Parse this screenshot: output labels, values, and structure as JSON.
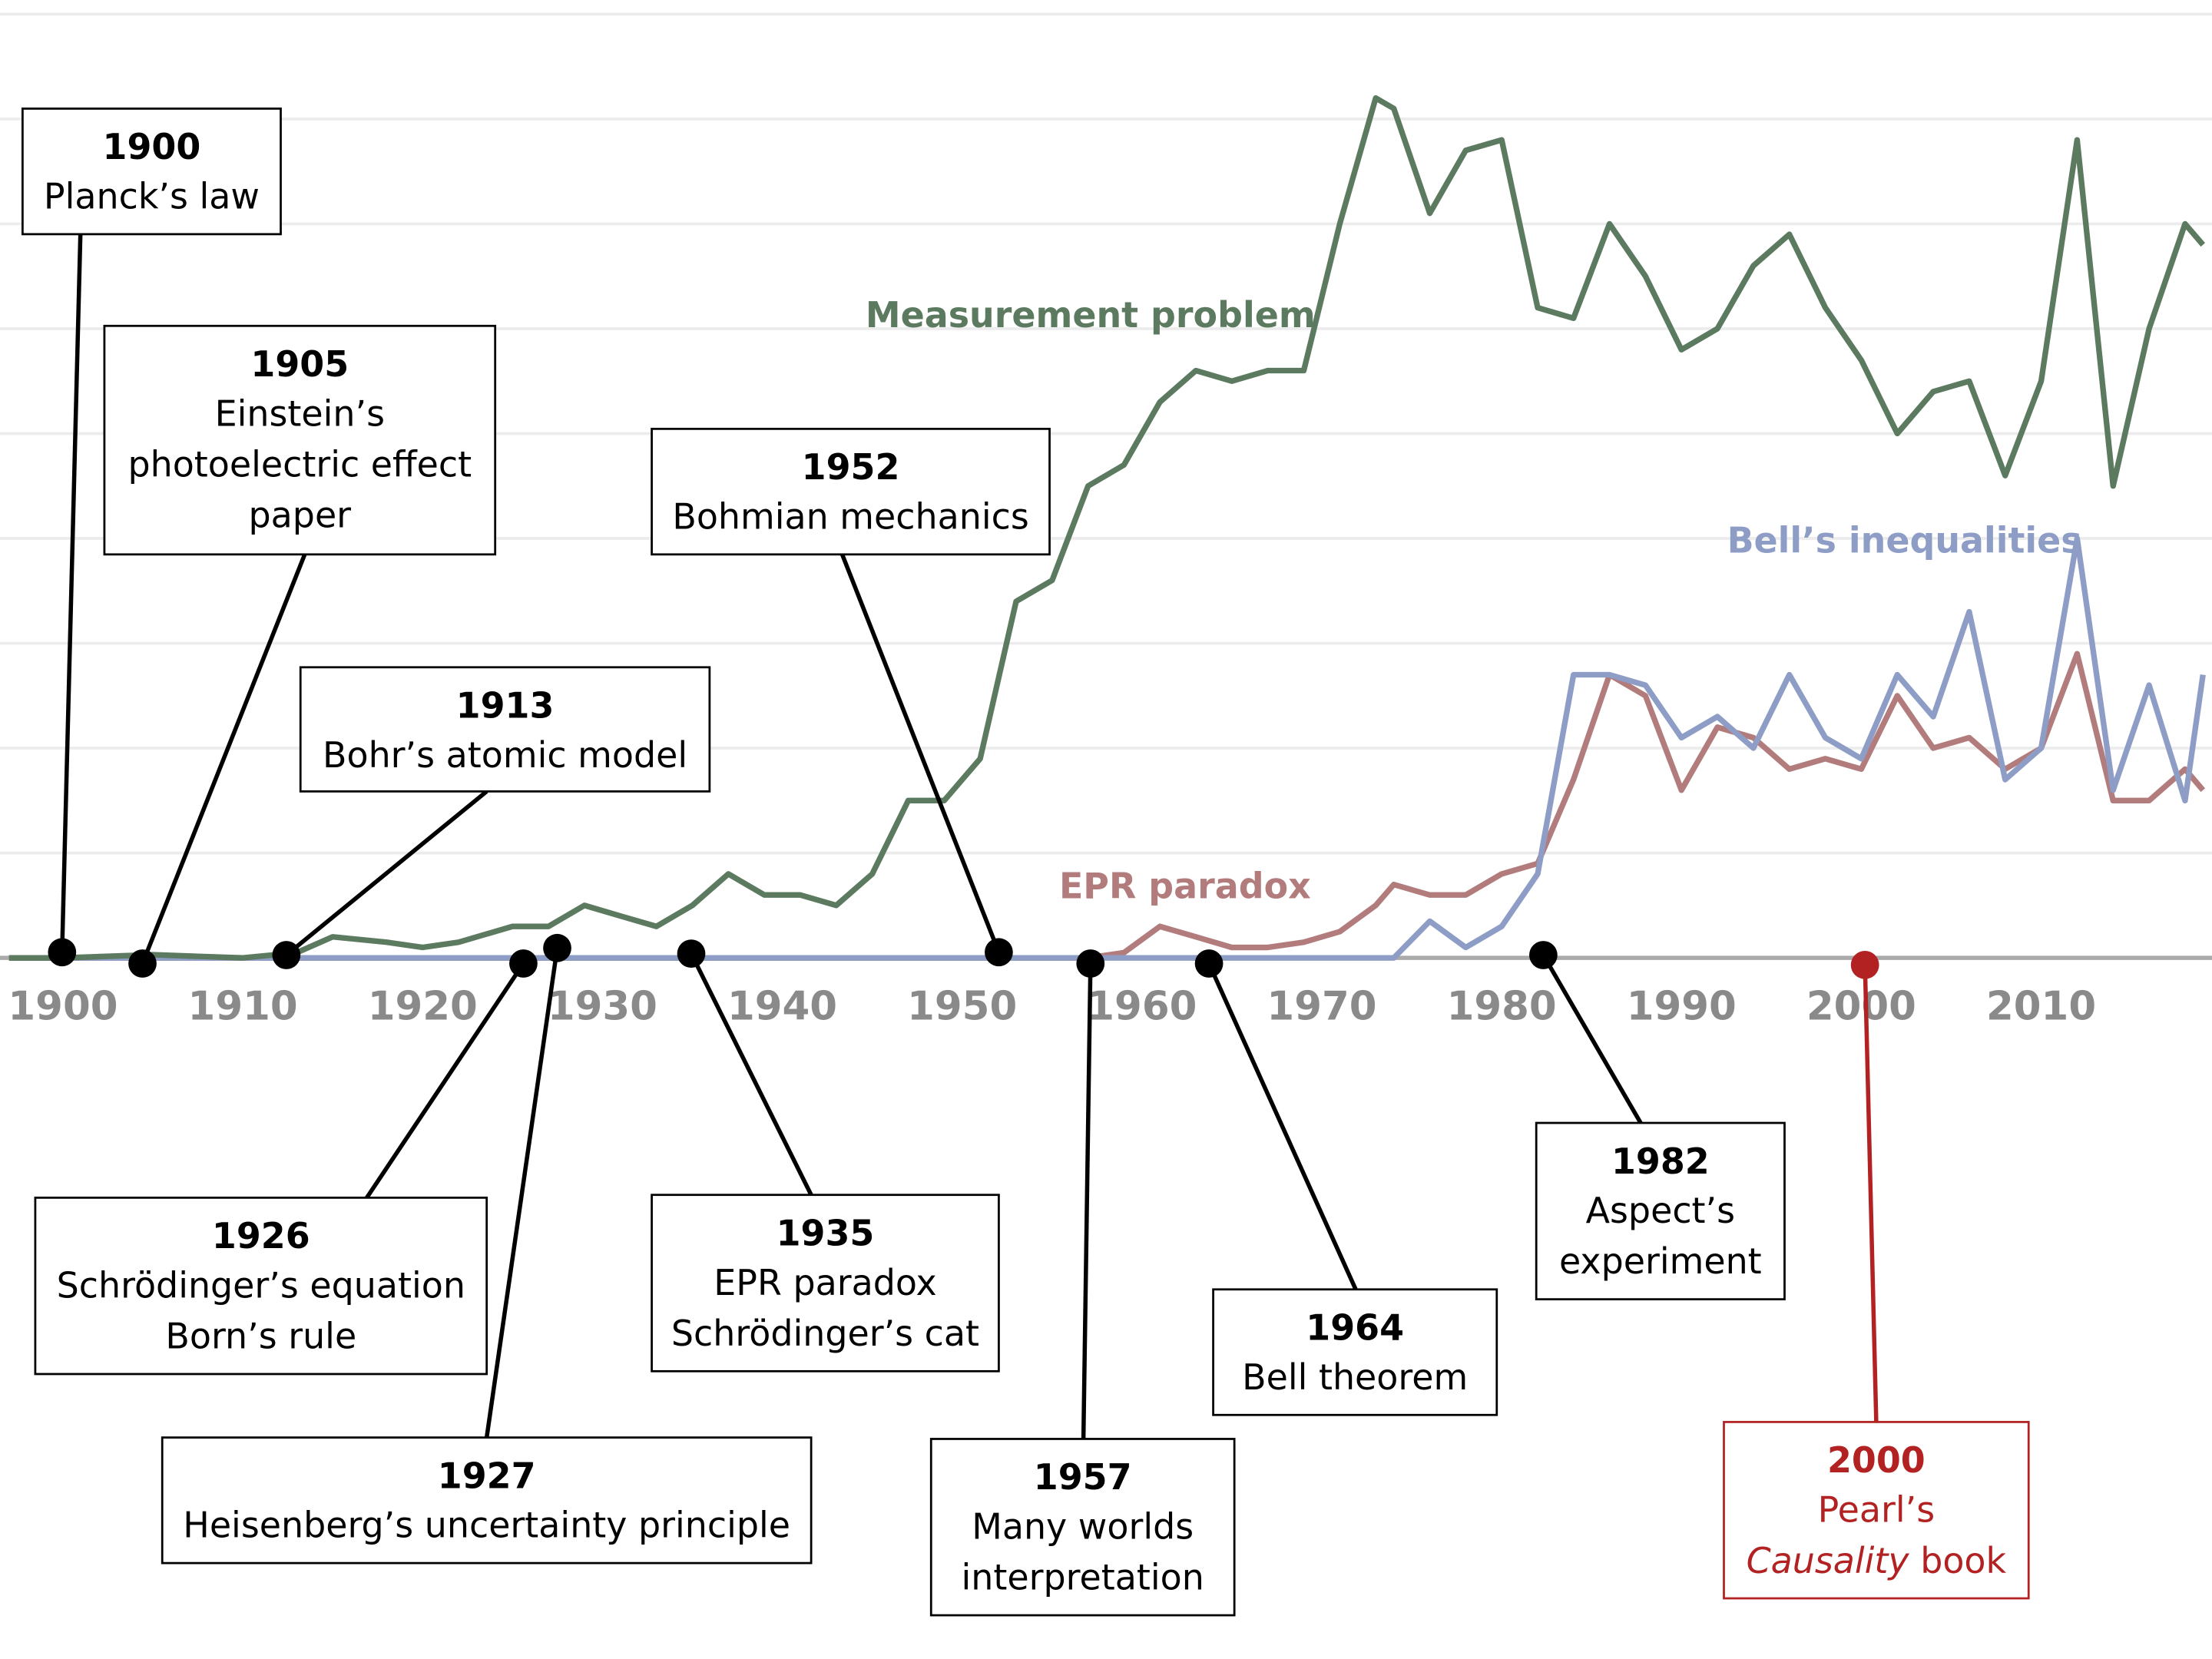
{
  "chart_data": {
    "type": "line",
    "x": [
      1897,
      1900,
      1905,
      1910,
      1913,
      1915,
      1918,
      1920,
      1922,
      1925,
      1927,
      1929,
      1931,
      1933,
      1935,
      1937,
      1939,
      1941,
      1943,
      1945,
      1947,
      1949,
      1951,
      1953,
      1955,
      1957,
      1959,
      1961,
      1963,
      1965,
      1967,
      1969,
      1971,
      1973,
      1974,
      1976,
      1978,
      1980,
      1982,
      1984,
      1986,
      1988,
      1990,
      1992,
      1994,
      1996,
      1998,
      2000,
      2002,
      2004,
      2006,
      2008,
      2010,
      2012,
      2014,
      2016,
      2018,
      2019
    ],
    "series": [
      {
        "name": "Measurement problem",
        "color": "#5b7a5f",
        "values": [
          0,
          0,
          0.03,
          0,
          0.05,
          0.2,
          0.15,
          0.1,
          0.15,
          0.3,
          0.3,
          0.5,
          0.4,
          0.3,
          0.5,
          0.8,
          0.6,
          0.6,
          0.5,
          0.8,
          1.5,
          1.5,
          1.9,
          3.4,
          3.6,
          4.5,
          4.7,
          5.3,
          5.6,
          5.5,
          5.6,
          5.6,
          7.0,
          8.2,
          8.1,
          7.1,
          7.7,
          7.8,
          6.2,
          6.1,
          7.0,
          6.5,
          5.8,
          6.0,
          6.6,
          6.9,
          6.2,
          5.7,
          5.0,
          5.4,
          5.5,
          4.6,
          5.5,
          7.8,
          4.5,
          6.0,
          7.0,
          6.8
        ]
      },
      {
        "name": "Bell’s inequalities",
        "color": "#8d9dc6",
        "values": [
          0,
          0,
          0,
          0,
          0,
          0,
          0,
          0,
          0,
          0,
          0,
          0,
          0,
          0,
          0,
          0,
          0,
          0,
          0,
          0,
          0,
          0,
          0,
          0,
          0,
          0,
          0,
          0,
          0,
          0,
          0,
          0,
          0,
          0,
          0,
          0.35,
          0.1,
          0.3,
          0.8,
          2.7,
          2.7,
          2.6,
          2.1,
          2.3,
          2.0,
          2.7,
          2.1,
          1.9,
          2.7,
          2.3,
          3.3,
          1.7,
          2.0,
          4.0,
          1.6,
          2.6,
          1.5,
          2.7
        ]
      },
      {
        "name": "EPR paradox",
        "color": "#b27c7c",
        "values": [
          0,
          0,
          0,
          0,
          0,
          0,
          0,
          0,
          0,
          0,
          0,
          0,
          0,
          0,
          0,
          0,
          0,
          0,
          0,
          0,
          0,
          0,
          0,
          0,
          0,
          0,
          0.05,
          0.3,
          0.2,
          0.1,
          0.1,
          0.15,
          0.25,
          0.5,
          0.7,
          0.6,
          0.6,
          0.8,
          0.9,
          1.7,
          2.7,
          2.5,
          1.6,
          2.2,
          2.1,
          1.8,
          1.9,
          1.8,
          2.5,
          2.0,
          2.1,
          1.8,
          2.0,
          2.9,
          1.5,
          1.5,
          1.8,
          1.6
        ]
      }
    ],
    "xlim": [
      1896.5,
      2019.5
    ],
    "xticks": [
      1900,
      1910,
      1920,
      1930,
      1940,
      1950,
      1960,
      1970,
      1980,
      1990,
      2000,
      2010
    ],
    "ylim": [
      0,
      9
    ],
    "yticks": [
      0,
      1,
      2,
      3,
      4,
      5,
      6,
      7,
      8,
      9
    ],
    "grid": true,
    "annotations": [
      {
        "year": "1900",
        "lines": [
          "Planck’s law"
        ],
        "color": "#000000"
      },
      {
        "year": "1905",
        "lines": [
          "Einstein’s",
          "photoelectric effect",
          "paper"
        ],
        "color": "#000000"
      },
      {
        "year": "1913",
        "lines": [
          "Bohr’s atomic model"
        ],
        "color": "#000000"
      },
      {
        "year": "1952",
        "lines": [
          "Bohmian mechanics"
        ],
        "color": "#000000"
      },
      {
        "year": "1926",
        "lines": [
          "Schrödinger’s equation",
          "Born’s rule"
        ],
        "color": "#000000"
      },
      {
        "year": "1927",
        "lines": [
          "Heisenberg’s uncertainty principle"
        ],
        "color": "#000000"
      },
      {
        "year": "1935",
        "lines": [
          "EPR paradox",
          "Schrödinger’s cat"
        ],
        "color": "#000000"
      },
      {
        "year": "1957",
        "lines": [
          "Many worlds",
          "interpretation"
        ],
        "color": "#000000"
      },
      {
        "year": "1964",
        "lines": [
          "Bell theorem"
        ],
        "color": "#000000"
      },
      {
        "year": "1982",
        "lines": [
          "Aspect’s",
          "experiment"
        ],
        "color": "#000000"
      },
      {
        "year": "2000",
        "lines": [
          "Pearl’s",
          {
            "italic": "Causality",
            "text": " book"
          }
        ],
        "color": "#b22222"
      }
    ]
  }
}
